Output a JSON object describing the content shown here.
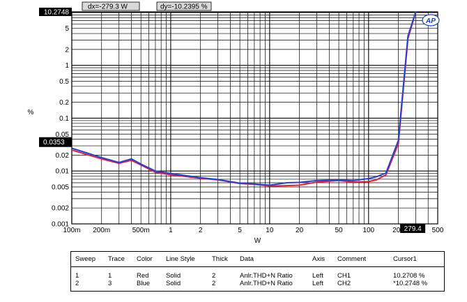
{
  "chart_data": {
    "type": "line",
    "x_scale": "log",
    "y_scale": "log",
    "xlim": [
      0.1,
      500
    ],
    "ylim": [
      0.001,
      10.2748
    ],
    "xlabel": "W",
    "ylabel": "%",
    "grid": true,
    "legend": "table-below",
    "x_ticks": [
      {
        "v": 0.1,
        "l": "100m"
      },
      {
        "v": 0.2,
        "l": "200m"
      },
      {
        "v": 0.5,
        "l": "500m"
      },
      {
        "v": 1,
        "l": "1"
      },
      {
        "v": 2,
        "l": "2"
      },
      {
        "v": 5,
        "l": "5"
      },
      {
        "v": 10,
        "l": "10"
      },
      {
        "v": 20,
        "l": "20"
      },
      {
        "v": 50,
        "l": "50"
      },
      {
        "v": 100,
        "l": "100"
      },
      {
        "v": 200,
        "l": "200"
      },
      {
        "v": 500,
        "l": "500"
      }
    ],
    "y_ticks": [
      {
        "v": 10,
        "l": "10"
      },
      {
        "v": 5,
        "l": "5"
      },
      {
        "v": 2,
        "l": "2"
      },
      {
        "v": 1,
        "l": "1"
      },
      {
        "v": 0.5,
        "l": "0.5"
      },
      {
        "v": 0.2,
        "l": "0.2"
      },
      {
        "v": 0.1,
        "l": "0.1"
      },
      {
        "v": 0.05,
        "l": "0.05"
      },
      {
        "v": 0.02,
        "l": "0.02"
      },
      {
        "v": 0.01,
        "l": "0.01"
      },
      {
        "v": 0.005,
        "l": "0.005"
      },
      {
        "v": 0.002,
        "l": "0.002"
      },
      {
        "v": 0.001,
        "l": "0.001"
      }
    ],
    "cursor": {
      "dx_label": "dx=-279.3  W",
      "dy_label": "dy=-10.2395 %",
      "y_marker_top": "10.2748",
      "y_marker_value": 10.2748,
      "y_marker_low": "0.0353",
      "y_marker_low_value": 0.0353,
      "x_marker": "279.4",
      "x_marker_value": 279.4
    },
    "logo": "AP",
    "series": [
      {
        "name": "Red",
        "color": "#e8202a",
        "x": [
          0.1,
          0.2,
          0.3,
          0.4,
          0.5,
          0.7,
          1,
          2,
          3,
          5,
          7,
          10,
          15,
          20,
          30,
          50,
          70,
          100,
          120,
          150,
          200,
          250,
          300
        ],
        "y": [
          0.025,
          0.017,
          0.014,
          0.016,
          0.013,
          0.0095,
          0.0085,
          0.0073,
          0.0068,
          0.0058,
          0.0056,
          0.0052,
          0.0053,
          0.0054,
          0.0062,
          0.0066,
          0.0062,
          0.0063,
          0.0068,
          0.0085,
          0.033,
          3.2,
          10.27
        ]
      },
      {
        "name": "Blue",
        "color": "#2440d8",
        "x": [
          0.1,
          0.2,
          0.3,
          0.4,
          0.5,
          0.7,
          1,
          2,
          3,
          5,
          7,
          10,
          15,
          20,
          30,
          50,
          70,
          100,
          120,
          150,
          200,
          250,
          300
        ],
        "y": [
          0.027,
          0.018,
          0.0145,
          0.017,
          0.0135,
          0.01,
          0.009,
          0.0075,
          0.0069,
          0.0059,
          0.0057,
          0.0054,
          0.006,
          0.0061,
          0.0066,
          0.0068,
          0.0066,
          0.0072,
          0.0078,
          0.0092,
          0.038,
          3.6,
          10.27
        ]
      }
    ]
  },
  "legend": {
    "headers": {
      "sweep": "Sweep",
      "trace": "Trace",
      "color": "Color",
      "line_style": "Line Style",
      "thick": "Thick",
      "data": "Data",
      "axis": "Axis",
      "comment": "Comment",
      "cursor": "Cursor1"
    },
    "rows": [
      {
        "sweep": "1",
        "trace": "1",
        "color": "Red",
        "line_style": "Solid",
        "thick": "2",
        "data": "Anlr.THD+N Ratio",
        "axis": "Left",
        "comment": "CH1",
        "cursor": "10.2708  %"
      },
      {
        "sweep": "2",
        "trace": "3",
        "color": "Blue",
        "line_style": "Solid",
        "thick": "2",
        "data": "Anlr.THD+N Ratio",
        "axis": "Left",
        "comment": "CH2",
        "cursor": "*10.2748  %"
      }
    ]
  }
}
